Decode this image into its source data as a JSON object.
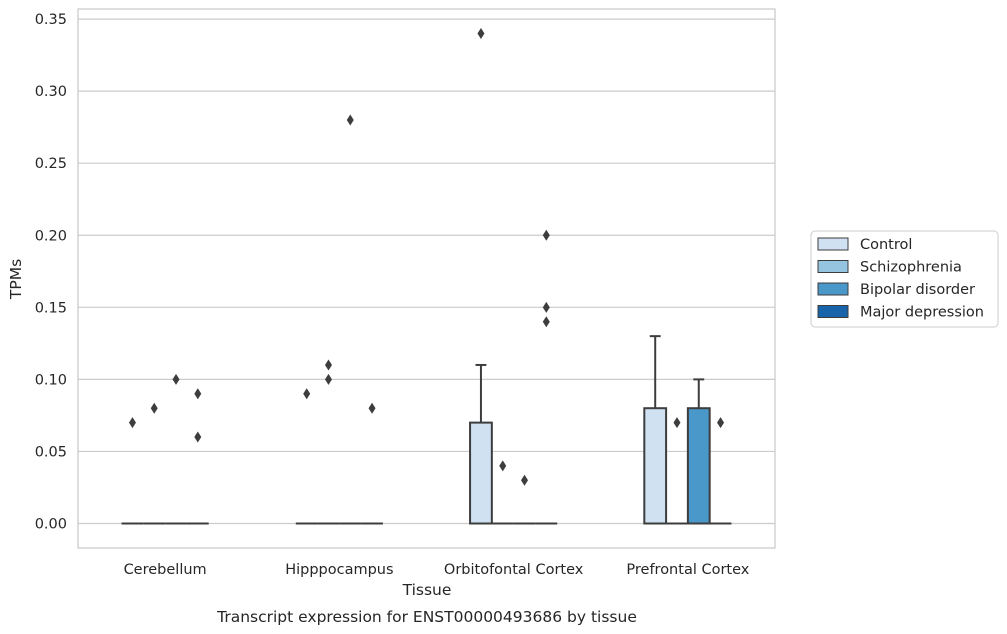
{
  "chart_data": {
    "type": "box",
    "title": "",
    "caption": "Transcript expression for ENST00000493686 by tissue",
    "xlabel": "Tissue",
    "ylabel": "TPMs",
    "ylim": [
      -0.017,
      0.357
    ],
    "yticks": [
      0.0,
      0.05,
      0.1,
      0.15,
      0.2,
      0.25,
      0.3,
      0.35
    ],
    "ytick_labels": [
      "0.00",
      "0.05",
      "0.10",
      "0.15",
      "0.20",
      "0.25",
      "0.30",
      "0.35"
    ],
    "grid": "horizontal",
    "legend_position": "right",
    "categories": [
      "Cerebellum",
      "Hipppocampus",
      "Orbitofontal Cortex",
      "Prefrontal Cortex"
    ],
    "series": [
      {
        "name": "Control",
        "color": "#d0e1f2",
        "boxes": [
          {
            "q1": 0,
            "median": 0,
            "q3": 0,
            "whisker_low": 0,
            "whisker_high": 0,
            "outliers": [
              0.07
            ]
          },
          {
            "q1": 0,
            "median": 0,
            "q3": 0,
            "whisker_low": 0,
            "whisker_high": 0,
            "outliers": [
              0.09
            ]
          },
          {
            "q1": 0,
            "median": 0,
            "q3": 0.07,
            "whisker_low": 0,
            "whisker_high": 0.11,
            "outliers": [
              0.34
            ]
          },
          {
            "q1": 0,
            "median": 0,
            "q3": 0.08,
            "whisker_low": 0,
            "whisker_high": 0.13,
            "outliers": []
          }
        ]
      },
      {
        "name": "Schizophrenia",
        "color": "#94c4df",
        "boxes": [
          {
            "q1": 0,
            "median": 0,
            "q3": 0,
            "whisker_low": 0,
            "whisker_high": 0,
            "outliers": [
              0.08
            ]
          },
          {
            "q1": 0,
            "median": 0,
            "q3": 0,
            "whisker_low": 0,
            "whisker_high": 0,
            "outliers": [
              0.11,
              0.1
            ]
          },
          {
            "q1": 0,
            "median": 0,
            "q3": 0,
            "whisker_low": 0,
            "whisker_high": 0,
            "outliers": [
              0.04
            ]
          },
          {
            "q1": 0,
            "median": 0,
            "q3": 0,
            "whisker_low": 0,
            "whisker_high": 0,
            "outliers": [
              0.07
            ]
          }
        ]
      },
      {
        "name": "Bipolar disorder",
        "color": "#4a98c9",
        "boxes": [
          {
            "q1": 0,
            "median": 0,
            "q3": 0,
            "whisker_low": 0,
            "whisker_high": 0,
            "outliers": [
              0.1
            ]
          },
          {
            "q1": 0,
            "median": 0,
            "q3": 0,
            "whisker_low": 0,
            "whisker_high": 0,
            "outliers": [
              0.28
            ]
          },
          {
            "q1": 0,
            "median": 0,
            "q3": 0,
            "whisker_low": 0,
            "whisker_high": 0,
            "outliers": [
              0.03
            ]
          },
          {
            "q1": 0,
            "median": 0,
            "q3": 0.08,
            "whisker_low": 0,
            "whisker_high": 0.1,
            "outliers": []
          }
        ]
      },
      {
        "name": "Major depression",
        "color": "#1764ab",
        "boxes": [
          {
            "q1": 0,
            "median": 0,
            "q3": 0,
            "whisker_low": 0,
            "whisker_high": 0,
            "outliers": [
              0.09,
              0.06
            ]
          },
          {
            "q1": 0,
            "median": 0,
            "q3": 0,
            "whisker_low": 0,
            "whisker_high": 0,
            "outliers": [
              0.08
            ]
          },
          {
            "q1": 0,
            "median": 0,
            "q3": 0,
            "whisker_low": 0,
            "whisker_high": 0,
            "outliers": [
              0.2,
              0.15,
              0.14
            ]
          },
          {
            "q1": 0,
            "median": 0,
            "q3": 0,
            "whisker_low": 0,
            "whisker_high": 0,
            "outliers": [
              0.07
            ]
          }
        ]
      }
    ]
  }
}
